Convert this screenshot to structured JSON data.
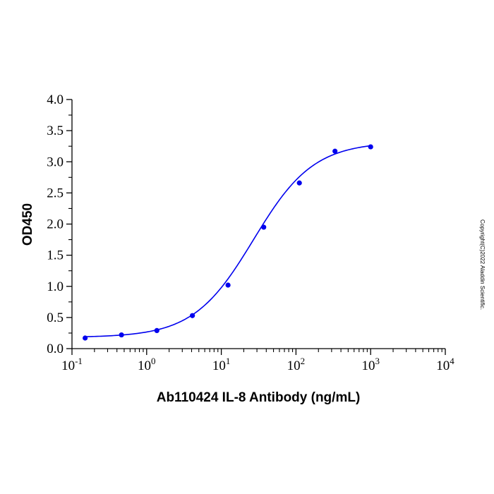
{
  "chart_data": {
    "type": "scatter",
    "title": "",
    "xlabel": "Ab110424 IL-8 Antibody (ng/mL)",
    "ylabel": "OD450",
    "x_scale": "log",
    "xlim": [
      0.1,
      10000
    ],
    "ylim": [
      0,
      4.0
    ],
    "x_ticks": [
      {
        "base": "10",
        "exp": "-1",
        "value": 0.1
      },
      {
        "base": "10",
        "exp": "0",
        "value": 1
      },
      {
        "base": "10",
        "exp": "1",
        "value": 10
      },
      {
        "base": "10",
        "exp": "2",
        "value": 100
      },
      {
        "base": "10",
        "exp": "3",
        "value": 1000
      },
      {
        "base": "10",
        "exp": "4",
        "value": 10000
      }
    ],
    "y_ticks": [
      "0.0",
      "0.5",
      "1.0",
      "1.5",
      "2.0",
      "2.5",
      "3.0",
      "3.5",
      "4.0"
    ],
    "grid": false,
    "series": [
      {
        "color": "#0000ee",
        "points": [
          {
            "x": 0.15,
            "y": 0.17
          },
          {
            "x": 0.46,
            "y": 0.22
          },
          {
            "x": 1.37,
            "y": 0.29
          },
          {
            "x": 4.1,
            "y": 0.53
          },
          {
            "x": 12.3,
            "y": 1.02
          },
          {
            "x": 37,
            "y": 1.95
          },
          {
            "x": 111,
            "y": 2.66
          },
          {
            "x": 333,
            "y": 3.17
          },
          {
            "x": 1000,
            "y": 3.24
          }
        ],
        "fit": {
          "type": "4PL",
          "bottom": 0.18,
          "top": 3.32,
          "ec50": 27,
          "hill": 1.08,
          "x_range": [
            0.15,
            1000
          ]
        }
      }
    ]
  },
  "watermark": "Copyright(C)2022 Aladdin Scientific."
}
